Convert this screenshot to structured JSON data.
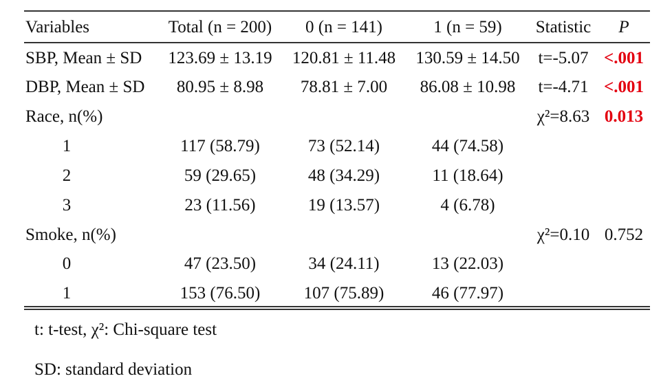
{
  "table": {
    "header": [
      "Variables",
      "Total (n = 200)",
      "0 (n = 141)",
      "1 (n = 59)",
      "Statistic",
      "P"
    ],
    "rows": [
      [
        "SBP, Mean ± SD",
        "123.69 ± 13.19",
        "120.81 ± 11.48",
        "130.59 ± 14.50",
        "t=-5.07",
        "<.001"
      ],
      [
        "DBP, Mean ± SD",
        "80.95 ± 8.98",
        "78.81 ± 7.00",
        "86.08 ± 10.98",
        "t=-4.71",
        "<.001"
      ],
      [
        "Race, n(%)",
        null,
        null,
        null,
        "χ²=8.63",
        "0.013"
      ],
      [
        "1",
        "117 (58.79)",
        "73 (52.14)",
        "44 (74.58)",
        null,
        null
      ],
      [
        "2",
        "59 (29.65)",
        "48 (34.29)",
        "11 (18.64)",
        null,
        null
      ],
      [
        "3",
        "23 (11.56)",
        "19 (13.57)",
        "4 (6.78)",
        null,
        null
      ],
      [
        "Smoke, n(%)",
        null,
        null,
        null,
        "χ²=0.10",
        "0.752"
      ],
      [
        "0",
        "47 (23.50)",
        "34 (24.11)",
        "13 (22.03)",
        null,
        null
      ],
      [
        "1",
        "153 (76.50)",
        "107 (75.89)",
        "46 (77.97)",
        null,
        null
      ]
    ]
  },
  "footnotes": [
    "t: t-test, χ²: Chi-square test",
    "SD: standard deviation"
  ]
}
